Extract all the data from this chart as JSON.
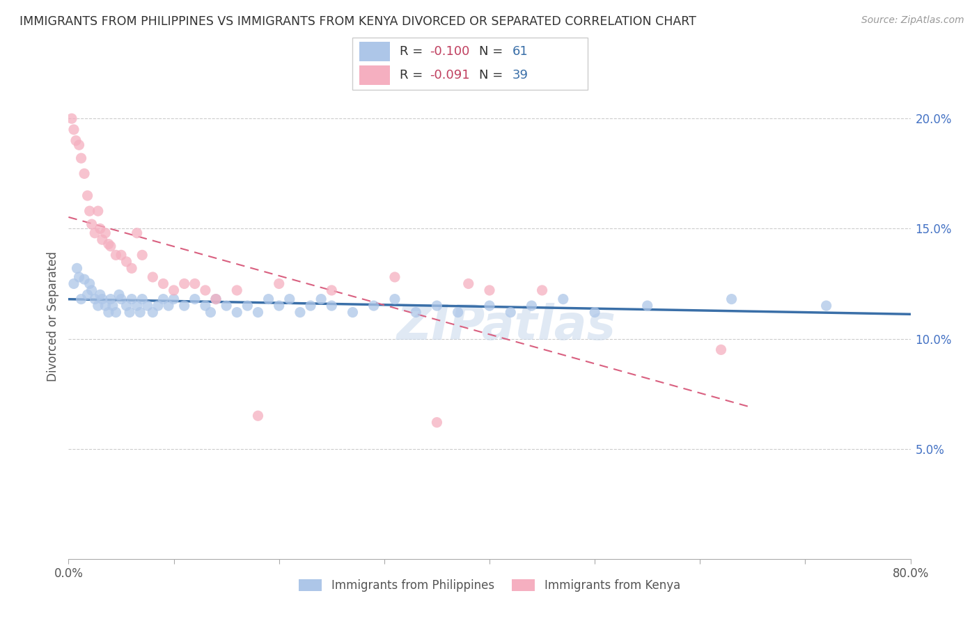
{
  "title": "IMMIGRANTS FROM PHILIPPINES VS IMMIGRANTS FROM KENYA DIVORCED OR SEPARATED CORRELATION CHART",
  "source": "Source: ZipAtlas.com",
  "ylabel": "Divorced or Separated",
  "xlim": [
    0.0,
    0.8
  ],
  "ylim": [
    0.0,
    0.22
  ],
  "xticks": [
    0.0,
    0.1,
    0.2,
    0.3,
    0.4,
    0.5,
    0.6,
    0.7,
    0.8
  ],
  "xtick_labels_show": [
    "0.0%",
    "",
    "",
    "",
    "",
    "",
    "",
    "",
    "80.0%"
  ],
  "yticks_right": [
    0.05,
    0.1,
    0.15,
    0.2
  ],
  "ytick_labels_right": [
    "5.0%",
    "10.0%",
    "15.0%",
    "20.0%"
  ],
  "philippines_color": "#adc6e8",
  "kenya_color": "#f5afc0",
  "philippines_line_color": "#3a6fa8",
  "kenya_line_color": "#d96080",
  "philippines_R": -0.1,
  "philippines_N": 61,
  "kenya_R": -0.091,
  "kenya_N": 39,
  "legend_label_1": "Immigrants from Philippines",
  "legend_label_2": "Immigrants from Kenya",
  "watermark": "ZIPatlas",
  "philippines_x": [
    0.005,
    0.008,
    0.01,
    0.012,
    0.015,
    0.018,
    0.02,
    0.022,
    0.025,
    0.028,
    0.03,
    0.032,
    0.035,
    0.038,
    0.04,
    0.042,
    0.045,
    0.048,
    0.05,
    0.055,
    0.058,
    0.06,
    0.065,
    0.068,
    0.07,
    0.075,
    0.08,
    0.085,
    0.09,
    0.095,
    0.1,
    0.11,
    0.12,
    0.13,
    0.135,
    0.14,
    0.15,
    0.16,
    0.17,
    0.18,
    0.19,
    0.2,
    0.21,
    0.22,
    0.23,
    0.24,
    0.25,
    0.27,
    0.29,
    0.31,
    0.33,
    0.35,
    0.37,
    0.4,
    0.42,
    0.44,
    0.47,
    0.5,
    0.55,
    0.63,
    0.72
  ],
  "philippines_y": [
    0.125,
    0.132,
    0.128,
    0.118,
    0.127,
    0.12,
    0.125,
    0.122,
    0.118,
    0.115,
    0.12,
    0.118,
    0.115,
    0.112,
    0.118,
    0.115,
    0.112,
    0.12,
    0.118,
    0.115,
    0.112,
    0.118,
    0.115,
    0.112,
    0.118,
    0.115,
    0.112,
    0.115,
    0.118,
    0.115,
    0.118,
    0.115,
    0.118,
    0.115,
    0.112,
    0.118,
    0.115,
    0.112,
    0.115,
    0.112,
    0.118,
    0.115,
    0.118,
    0.112,
    0.115,
    0.118,
    0.115,
    0.112,
    0.115,
    0.118,
    0.112,
    0.115,
    0.112,
    0.115,
    0.112,
    0.115,
    0.118,
    0.112,
    0.115,
    0.118,
    0.115
  ],
  "kenya_x": [
    0.003,
    0.005,
    0.007,
    0.01,
    0.012,
    0.015,
    0.018,
    0.02,
    0.022,
    0.025,
    0.028,
    0.03,
    0.032,
    0.035,
    0.038,
    0.04,
    0.045,
    0.05,
    0.055,
    0.06,
    0.065,
    0.07,
    0.08,
    0.09,
    0.1,
    0.11,
    0.12,
    0.13,
    0.14,
    0.16,
    0.18,
    0.2,
    0.25,
    0.31,
    0.35,
    0.38,
    0.4,
    0.45,
    0.62
  ],
  "kenya_y": [
    0.2,
    0.195,
    0.19,
    0.188,
    0.182,
    0.175,
    0.165,
    0.158,
    0.152,
    0.148,
    0.158,
    0.15,
    0.145,
    0.148,
    0.143,
    0.142,
    0.138,
    0.138,
    0.135,
    0.132,
    0.148,
    0.138,
    0.128,
    0.125,
    0.122,
    0.125,
    0.125,
    0.122,
    0.118,
    0.122,
    0.065,
    0.125,
    0.122,
    0.128,
    0.062,
    0.125,
    0.122,
    0.122,
    0.095
  ]
}
